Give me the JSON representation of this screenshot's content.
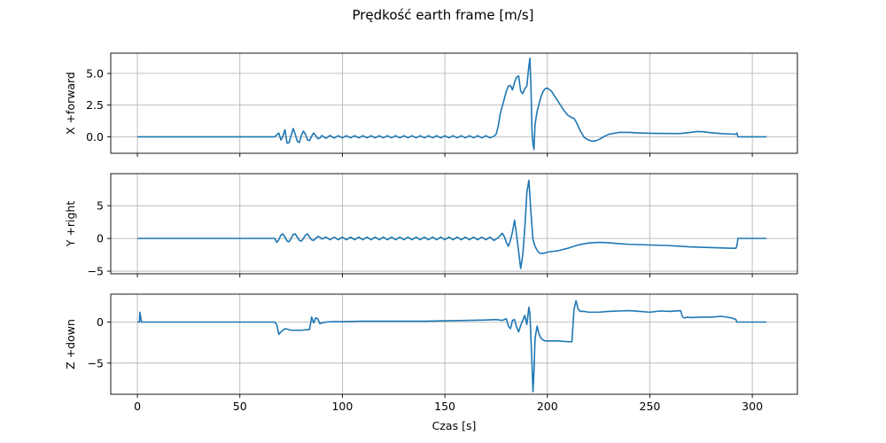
{
  "title": "Prędkość earth frame [m/s]",
  "colors": {
    "line": "#1f77b4",
    "grid": "#b0b0b0",
    "axes": "#000000"
  },
  "chart_data": [
    {
      "type": "line",
      "ylabel": "X +forward",
      "xlabel": "",
      "xlim": [
        -13,
        322
      ],
      "ylim": [
        -1.3,
        6.6
      ],
      "xticks": [
        0,
        50,
        100,
        150,
        200,
        250,
        300
      ],
      "yticks": [
        0.0,
        2.5,
        5.0
      ],
      "ytick_labels": [
        "0.0",
        "2.5",
        "5.0"
      ],
      "xtick_labels_visible": false,
      "grid": true,
      "x": [
        0,
        67,
        68,
        69,
        70,
        71,
        72,
        73,
        74,
        75,
        76,
        77,
        78,
        79,
        80,
        81,
        82,
        83,
        84,
        85,
        86,
        87,
        88,
        89,
        90,
        92,
        94,
        96,
        98,
        100,
        102,
        104,
        106,
        108,
        110,
        112,
        114,
        116,
        118,
        120,
        122,
        124,
        126,
        128,
        130,
        132,
        134,
        136,
        138,
        140,
        142,
        144,
        146,
        148,
        150,
        152,
        154,
        156,
        158,
        160,
        162,
        164,
        166,
        168,
        170,
        172,
        174,
        175,
        176,
        177,
        178,
        179,
        180,
        181,
        182,
        183,
        184,
        185,
        186,
        187,
        188,
        189,
        190,
        191,
        191.5,
        192,
        192.5,
        193,
        193.5,
        194,
        195,
        196,
        197,
        198,
        199,
        200,
        202,
        204,
        206,
        208,
        210,
        212,
        213,
        214,
        216,
        218,
        220,
        222,
        224,
        226,
        228,
        230,
        235,
        240,
        245,
        250,
        255,
        260,
        265,
        270,
        273,
        276,
        280,
        285,
        290,
        292,
        292.5,
        293,
        300,
        307
      ],
      "y": [
        0.0,
        0.0,
        0.15,
        0.3,
        -0.25,
        0.05,
        0.55,
        -0.5,
        -0.45,
        0.1,
        0.65,
        0.2,
        -0.35,
        -0.45,
        0.1,
        0.45,
        0.2,
        -0.25,
        -0.3,
        0.05,
        0.3,
        0.1,
        -0.15,
        -0.1,
        0.1,
        -0.12,
        0.1,
        -0.1,
        0.08,
        -0.08,
        0.08,
        -0.08,
        0.08,
        -0.08,
        0.08,
        -0.08,
        0.08,
        -0.08,
        0.08,
        -0.08,
        0.08,
        -0.08,
        0.08,
        -0.08,
        0.08,
        -0.08,
        0.08,
        -0.08,
        0.08,
        -0.08,
        0.08,
        -0.08,
        0.08,
        -0.08,
        0.08,
        -0.08,
        0.08,
        -0.08,
        0.08,
        -0.08,
        0.08,
        -0.08,
        0.08,
        -0.08,
        0.08,
        -0.08,
        0.05,
        0.2,
        0.8,
        1.8,
        2.4,
        3.0,
        3.6,
        4.0,
        4.05,
        3.7,
        4.3,
        4.7,
        4.8,
        3.6,
        3.4,
        3.8,
        4.0,
        5.6,
        6.2,
        4.0,
        0.5,
        -0.6,
        -1.0,
        1.0,
        2.0,
        2.6,
        3.2,
        3.6,
        3.8,
        3.85,
        3.6,
        3.1,
        2.6,
        2.1,
        1.7,
        1.5,
        1.45,
        1.2,
        0.5,
        -0.05,
        -0.25,
        -0.35,
        -0.3,
        -0.15,
        0.05,
        0.2,
        0.35,
        0.35,
        0.3,
        0.28,
        0.27,
        0.26,
        0.26,
        0.35,
        0.42,
        0.4,
        0.32,
        0.25,
        0.22,
        0.2,
        0.3,
        0.0,
        0.0,
        0.0
      ]
    },
    {
      "type": "line",
      "ylabel": "Y +right",
      "xlabel": "",
      "xlim": [
        -13,
        322
      ],
      "ylim": [
        -5.4,
        9.9
      ],
      "xticks": [
        0,
        50,
        100,
        150,
        200,
        250,
        300
      ],
      "yticks": [
        -5,
        0,
        5
      ],
      "ytick_labels": [
        "−5",
        "0",
        "5"
      ],
      "xtick_labels_visible": false,
      "grid": true,
      "x": [
        0,
        67,
        68,
        69,
        70,
        71,
        72,
        73,
        74,
        75,
        76,
        77,
        78,
        79,
        80,
        81,
        82,
        83,
        84,
        85,
        86,
        87,
        88,
        89,
        90,
        92,
        94,
        96,
        98,
        100,
        102,
        104,
        106,
        108,
        110,
        112,
        114,
        116,
        118,
        120,
        122,
        124,
        126,
        128,
        130,
        132,
        134,
        136,
        138,
        140,
        142,
        144,
        146,
        148,
        150,
        152,
        154,
        156,
        158,
        160,
        162,
        164,
        166,
        168,
        170,
        172,
        174,
        176,
        178,
        179,
        180,
        181,
        182,
        183,
        184,
        185,
        186,
        187,
        188,
        189,
        190,
        191,
        192,
        193,
        194,
        195,
        196,
        197,
        198,
        199,
        200,
        202,
        205,
        210,
        215,
        220,
        225,
        230,
        235,
        240,
        250,
        260,
        270,
        280,
        290,
        292,
        292.5,
        293,
        300,
        307
      ],
      "y": [
        0.0,
        0.0,
        -0.6,
        -0.2,
        0.5,
        0.7,
        0.2,
        -0.4,
        -0.5,
        0.0,
        0.6,
        0.7,
        0.2,
        -0.3,
        -0.4,
        0.0,
        0.5,
        0.7,
        0.2,
        -0.2,
        -0.3,
        0.0,
        0.3,
        0.2,
        -0.1,
        0.2,
        -0.2,
        0.2,
        -0.2,
        0.2,
        -0.2,
        0.2,
        -0.2,
        0.2,
        -0.2,
        0.2,
        -0.2,
        0.2,
        -0.2,
        0.2,
        -0.2,
        0.2,
        -0.2,
        0.2,
        -0.2,
        0.2,
        -0.2,
        0.2,
        -0.2,
        0.2,
        -0.2,
        0.2,
        -0.2,
        0.2,
        -0.2,
        0.2,
        -0.2,
        0.2,
        -0.2,
        0.2,
        -0.2,
        0.2,
        -0.2,
        0.2,
        -0.2,
        0.2,
        -0.3,
        0.1,
        0.8,
        0.3,
        -0.6,
        -1.2,
        -0.3,
        1.0,
        2.8,
        0.5,
        -2.0,
        -4.6,
        -2.5,
        1.5,
        7.0,
        8.9,
        4.0,
        -0.2,
        -1.2,
        -1.8,
        -2.2,
        -2.3,
        -2.3,
        -2.2,
        -2.1,
        -2.0,
        -1.9,
        -1.5,
        -1.0,
        -0.7,
        -0.6,
        -0.65,
        -0.8,
        -0.9,
        -1.0,
        -1.1,
        -1.3,
        -1.4,
        -1.5,
        -1.5,
        -1.1,
        0.0,
        0.0,
        0.0
      ]
    },
    {
      "type": "line",
      "ylabel": "Z +down",
      "xlabel": "Czas [s]",
      "xlim": [
        -13,
        322
      ],
      "ylim": [
        -8.8,
        3.4
      ],
      "xticks": [
        0,
        50,
        100,
        150,
        200,
        250,
        300
      ],
      "xtick_labels": [
        "0",
        "50",
        "100",
        "150",
        "200",
        "250",
        "300"
      ],
      "yticks": [
        -5,
        0
      ],
      "ytick_labels": [
        "−5",
        "0"
      ],
      "xtick_labels_visible": true,
      "grid": true,
      "x": [
        0,
        1,
        1.2,
        1.6,
        2,
        66,
        67,
        68,
        69,
        70,
        72,
        75,
        80,
        84,
        85,
        86,
        87,
        88,
        89,
        90,
        92,
        95,
        100,
        110,
        120,
        130,
        140,
        150,
        160,
        170,
        175,
        178,
        179,
        180,
        181,
        182,
        183,
        184,
        185,
        186,
        187,
        188,
        189,
        190,
        191,
        191.5,
        192,
        192.5,
        193,
        193.5,
        194,
        195,
        196,
        197,
        198,
        199,
        200,
        205,
        210,
        212,
        213,
        214,
        215,
        216,
        218,
        220,
        225,
        230,
        235,
        240,
        245,
        250,
        255,
        260,
        265,
        266,
        267,
        268,
        270,
        275,
        280,
        285,
        290,
        291,
        292,
        292.5,
        300,
        307
      ],
      "y": [
        0.0,
        0.0,
        1.2,
        0.6,
        0.0,
        0.0,
        0.0,
        -0.3,
        -1.5,
        -1.2,
        -0.8,
        -1.0,
        -1.0,
        -0.9,
        0.6,
        -0.1,
        0.5,
        0.4,
        -0.2,
        -0.1,
        0.0,
        0.05,
        0.05,
        0.1,
        0.1,
        0.1,
        0.1,
        0.15,
        0.2,
        0.25,
        0.3,
        0.2,
        0.3,
        0.4,
        -0.5,
        -0.8,
        0.2,
        0.3,
        -0.6,
        -1.2,
        -0.4,
        0.2,
        0.8,
        -0.3,
        1.8,
        1.0,
        -2.0,
        -5.0,
        -8.5,
        -6.0,
        -2.0,
        -0.5,
        -1.5,
        -2.0,
        -2.2,
        -2.3,
        -2.3,
        -2.3,
        -2.4,
        -2.4,
        1.5,
        2.6,
        1.6,
        1.3,
        1.3,
        1.2,
        1.2,
        1.3,
        1.35,
        1.4,
        1.3,
        1.2,
        1.35,
        1.3,
        1.4,
        0.6,
        0.5,
        0.6,
        0.55,
        0.6,
        0.6,
        0.7,
        0.5,
        0.4,
        0.3,
        0.0,
        0.0,
        0.0
      ]
    }
  ]
}
